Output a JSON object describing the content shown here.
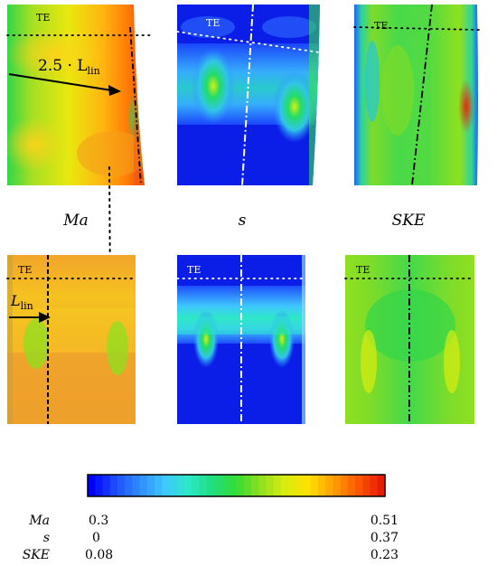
{
  "panels": {
    "labels": [
      "Ma",
      "s",
      "SKE"
    ],
    "te_label": "TE",
    "annotation_top": "2.5 · L",
    "annotation_sub": "lin",
    "annotation_bottom": "L",
    "annotation_bottom_sub": "lin"
  },
  "colorbar": {
    "rows": [
      {
        "name": "Ma",
        "min": "0.3",
        "max": "0.51"
      },
      {
        "name": "s",
        "min": "0",
        "max": "0.37"
      },
      {
        "name": "SKE",
        "min": "0.08",
        "max": "0.23"
      }
    ],
    "colors": [
      "#0000ff",
      "#1d4dff",
      "#2f8cff",
      "#3fc6ff",
      "#2ee8c8",
      "#1fdd7f",
      "#33dd33",
      "#8fe01f",
      "#d9ec10",
      "#ffe000",
      "#ffa000",
      "#ff5a00",
      "#e81c00"
    ]
  }
}
